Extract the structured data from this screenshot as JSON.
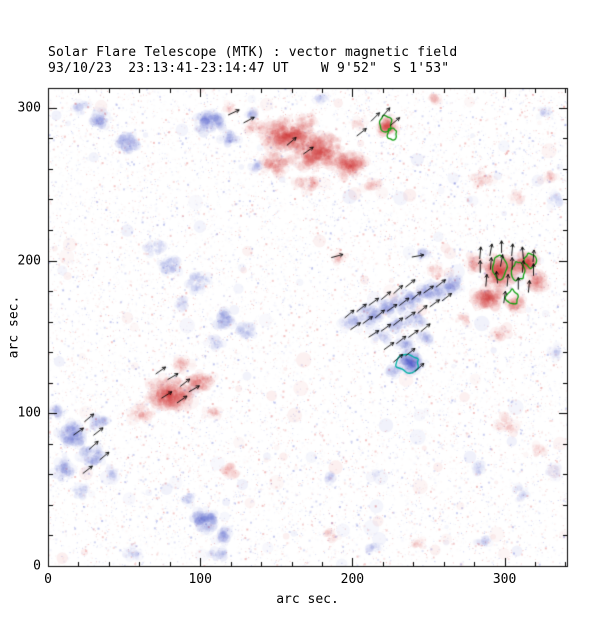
{
  "chart_data": {
    "type": "heatmap",
    "subtype": "solar-vector-magnetogram",
    "title": "Solar Flare Telescope (MTK) : vector magnetic field",
    "subtitle": "93/10/23  23:13:41-23:14:47 UT    W 9'52\"  S 1'53\"",
    "xlabel": "arc sec.",
    "ylabel": "arc sec.",
    "xlim": [
      0,
      341
    ],
    "ylim": [
      0,
      313
    ],
    "xticks": [
      0,
      100,
      200,
      300
    ],
    "yticks": [
      0,
      100,
      200,
      300
    ],
    "minor_tick_step": 20,
    "description": "Magnetogram: red = positive polarity, blue = negative polarity, black arrows = transverse field vectors, green and cyan closed contours mark strong-field kernels.",
    "colors": {
      "positive": "#d63c3c",
      "negative": "#4a58cc",
      "contour_green": "#11a011",
      "contour_cyan": "#00b0a4",
      "vector": "#000000",
      "axis": "#000000",
      "background": "#ffffff"
    },
    "positive_regions": [
      [
        158,
        282,
        20,
        13,
        0.9
      ],
      [
        178,
        271,
        22,
        15,
        0.95
      ],
      [
        198,
        262,
        13,
        10,
        0.8
      ],
      [
        149,
        263,
        12,
        9,
        0.65
      ],
      [
        170,
        250,
        10,
        7,
        0.5
      ],
      [
        136,
        287,
        8,
        6,
        0.5
      ],
      [
        213,
        249,
        7,
        5,
        0.4
      ],
      [
        170,
        292,
        8,
        6,
        0.5
      ],
      [
        205,
        290,
        6,
        4,
        0.3
      ],
      [
        223,
        288,
        7,
        6,
        1.0
      ],
      [
        298,
        193,
        14,
        12,
        0.95
      ],
      [
        314,
        198,
        10,
        9,
        0.9
      ],
      [
        290,
        176,
        12,
        9,
        0.85
      ],
      [
        308,
        172,
        8,
        7,
        0.7
      ],
      [
        322,
        186,
        7,
        9,
        0.7
      ],
      [
        280,
        198,
        7,
        6,
        0.6
      ],
      [
        296,
        152,
        7,
        5,
        0.4
      ],
      [
        272,
        161,
        8,
        5,
        0.35
      ],
      [
        80,
        112,
        19,
        13,
        0.8
      ],
      [
        100,
        120,
        12,
        9,
        0.7
      ],
      [
        62,
        100,
        9,
        7,
        0.5
      ],
      [
        108,
        100,
        8,
        6,
        0.4
      ],
      [
        88,
        132,
        8,
        6,
        0.45
      ],
      [
        192,
        202,
        6,
        5,
        0.5
      ],
      [
        255,
        192,
        8,
        6,
        0.35
      ],
      [
        120,
        62,
        7,
        6,
        0.4
      ],
      [
        300,
        92,
        9,
        7,
        0.3
      ],
      [
        322,
        76,
        7,
        5,
        0.25
      ],
      [
        286,
        253,
        10,
        7,
        0.3
      ],
      [
        310,
        242,
        8,
        6,
        0.25
      ],
      [
        330,
        255,
        6,
        5,
        0.25
      ],
      [
        186,
        20,
        7,
        5,
        0.3
      ],
      [
        244,
        14,
        6,
        4,
        0.2
      ],
      [
        120,
        300,
        6,
        4,
        0.3
      ],
      [
        254,
        306,
        5,
        3,
        0.3
      ]
    ],
    "negative_regions": [
      [
        35,
        292,
        9,
        7,
        0.6
      ],
      [
        52,
        277,
        10,
        8,
        0.7
      ],
      [
        22,
        300,
        6,
        5,
        0.4
      ],
      [
        106,
        291,
        12,
        9,
        0.75
      ],
      [
        119,
        280,
        8,
        6,
        0.6
      ],
      [
        134,
        296,
        4,
        3,
        0.4
      ],
      [
        70,
        208,
        8,
        6,
        0.45
      ],
      [
        80,
        196,
        9,
        7,
        0.55
      ],
      [
        98,
        186,
        10,
        7,
        0.6
      ],
      [
        115,
        162,
        9,
        7,
        0.6
      ],
      [
        130,
        154,
        8,
        6,
        0.5
      ],
      [
        110,
        146,
        7,
        5,
        0.4
      ],
      [
        88,
        172,
        6,
        5,
        0.35
      ],
      [
        200,
        160,
        9,
        6,
        0.5
      ],
      [
        212,
        165,
        10,
        7,
        0.6
      ],
      [
        225,
        170,
        10,
        7,
        0.65
      ],
      [
        238,
        175,
        10,
        7,
        0.7
      ],
      [
        252,
        180,
        10,
        7,
        0.7
      ],
      [
        265,
        185,
        9,
        7,
        0.65
      ],
      [
        230,
        158,
        9,
        6,
        0.6
      ],
      [
        242,
        162,
        9,
        6,
        0.6
      ],
      [
        235,
        146,
        8,
        6,
        0.6
      ],
      [
        238,
        133,
        9,
        8,
        0.95
      ],
      [
        228,
        128,
        6,
        5,
        0.6
      ],
      [
        248,
        150,
        7,
        5,
        0.5
      ],
      [
        220,
        150,
        7,
        5,
        0.5
      ],
      [
        16,
        86,
        12,
        10,
        0.7
      ],
      [
        30,
        72,
        10,
        8,
        0.65
      ],
      [
        10,
        62,
        9,
        8,
        0.6
      ],
      [
        34,
        94,
        8,
        6,
        0.5
      ],
      [
        6,
        100,
        7,
        6,
        0.45
      ],
      [
        22,
        48,
        7,
        6,
        0.45
      ],
      [
        42,
        60,
        6,
        5,
        0.35
      ],
      [
        102,
        30,
        11,
        9,
        0.75
      ],
      [
        116,
        20,
        8,
        6,
        0.6
      ],
      [
        92,
        44,
        7,
        5,
        0.45
      ],
      [
        112,
        8,
        7,
        5,
        0.5
      ],
      [
        185,
        58,
        5,
        4,
        0.3
      ],
      [
        214,
        12,
        6,
        4,
        0.3
      ],
      [
        333,
        240,
        6,
        6,
        0.3
      ],
      [
        310,
        48,
        8,
        6,
        0.35
      ],
      [
        332,
        62,
        6,
        5,
        0.3
      ],
      [
        286,
        16,
        6,
        4,
        0.25
      ],
      [
        334,
        140,
        5,
        5,
        0.25
      ],
      [
        247,
        204,
        5,
        4,
        0.3
      ],
      [
        55,
        8,
        7,
        4,
        0.3
      ],
      [
        136,
        262,
        5,
        4,
        0.3
      ],
      [
        180,
        306,
        6,
        3,
        0.25
      ],
      [
        326,
        297,
        5,
        4,
        0.2
      ],
      [
        284,
        64,
        6,
        5,
        0.25
      ]
    ],
    "vectors": {
      "length_arcsec": 8,
      "list": [
        [
          198,
          165,
          40
        ],
        [
          206,
          169,
          38
        ],
        [
          214,
          173,
          36
        ],
        [
          222,
          177,
          40
        ],
        [
          230,
          181,
          42
        ],
        [
          238,
          185,
          38
        ],
        [
          202,
          157,
          35
        ],
        [
          210,
          161,
          36
        ],
        [
          218,
          165,
          40
        ],
        [
          226,
          169,
          35
        ],
        [
          234,
          173,
          38
        ],
        [
          242,
          177,
          40
        ],
        [
          250,
          181,
          36
        ],
        [
          258,
          185,
          38
        ],
        [
          214,
          152,
          33
        ],
        [
          222,
          156,
          36
        ],
        [
          230,
          160,
          38
        ],
        [
          238,
          164,
          35
        ],
        [
          246,
          168,
          40
        ],
        [
          254,
          172,
          36
        ],
        [
          262,
          176,
          38
        ],
        [
          224,
          144,
          36
        ],
        [
          232,
          148,
          38
        ],
        [
          240,
          152,
          36
        ],
        [
          248,
          156,
          40
        ],
        [
          230,
          136,
          40
        ],
        [
          238,
          140,
          38
        ],
        [
          244,
          130,
          42
        ],
        [
          284,
          205,
          85
        ],
        [
          291,
          207,
          80
        ],
        [
          298,
          209,
          90
        ],
        [
          305,
          207,
          85
        ],
        [
          312,
          205,
          95
        ],
        [
          319,
          203,
          85
        ],
        [
          284,
          196,
          90
        ],
        [
          291,
          198,
          85
        ],
        [
          298,
          200,
          80
        ],
        [
          305,
          198,
          90
        ],
        [
          312,
          196,
          85
        ],
        [
          319,
          194,
          90
        ],
        [
          288,
          187,
          85
        ],
        [
          295,
          189,
          95
        ],
        [
          302,
          187,
          85
        ],
        [
          309,
          185,
          90
        ],
        [
          316,
          183,
          85
        ],
        [
          300,
          176,
          82
        ],
        [
          215,
          294,
          45
        ],
        [
          222,
          297,
          50
        ],
        [
          228,
          291,
          40
        ],
        [
          206,
          284,
          38
        ],
        [
          160,
          278,
          40
        ],
        [
          171,
          272,
          35
        ],
        [
          122,
          297,
          25
        ],
        [
          132,
          292,
          28
        ],
        [
          74,
          128,
          35
        ],
        [
          82,
          124,
          30
        ],
        [
          90,
          120,
          38
        ],
        [
          78,
          112,
          32
        ],
        [
          88,
          109,
          35
        ],
        [
          96,
          116,
          30
        ],
        [
          27,
          97,
          40
        ],
        [
          33,
          88,
          38
        ],
        [
          30,
          79,
          42
        ],
        [
          37,
          72,
          40
        ],
        [
          26,
          63,
          38
        ],
        [
          20,
          88,
          35
        ],
        [
          190,
          203,
          15
        ],
        [
          243,
          203,
          10
        ]
      ]
    },
    "contours": {
      "green": [
        [
          222,
          290,
          4,
          5
        ],
        [
          226,
          283,
          3,
          4
        ],
        [
          297,
          196,
          5,
          8
        ],
        [
          309,
          193,
          4,
          6
        ],
        [
          317,
          200,
          4,
          5
        ],
        [
          305,
          176,
          4,
          5
        ]
      ],
      "cyan": [
        [
          236,
          133,
          7,
          6
        ]
      ]
    }
  }
}
